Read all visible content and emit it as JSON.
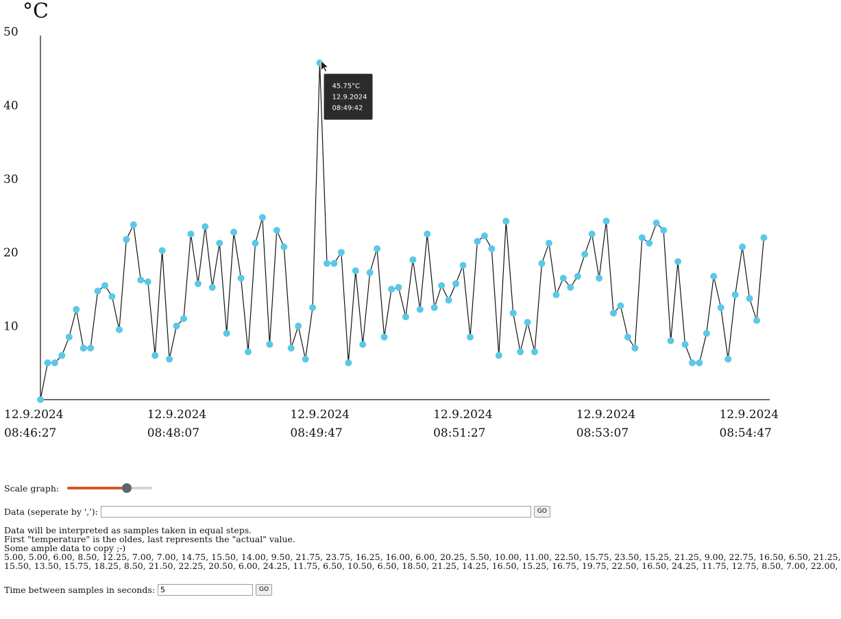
{
  "chart_data": {
    "type": "line",
    "unit_label": "°C",
    "ylim": [
      0,
      50
    ],
    "yticks": [
      10,
      20,
      30,
      40,
      50
    ],
    "x_tick_labels": [
      {
        "date": "12.9.2024",
        "time": "08:46:27"
      },
      {
        "date": "12.9.2024",
        "time": "08:48:07"
      },
      {
        "date": "12.9.2024",
        "time": "08:49:47"
      },
      {
        "date": "12.9.2024",
        "time": "08:51:27"
      },
      {
        "date": "12.9.2024",
        "time": "08:53:07"
      },
      {
        "date": "12.9.2024",
        "time": "08:54:47"
      }
    ],
    "series": [
      {
        "line_color": "#111111",
        "marker_color": "#5bc8e8",
        "values": [
          0,
          5.0,
          5.0,
          6.0,
          8.5,
          12.25,
          7.0,
          7.0,
          14.75,
          15.5,
          14.0,
          9.5,
          21.75,
          23.75,
          16.25,
          16.0,
          6.0,
          20.25,
          5.5,
          10.0,
          11.0,
          22.5,
          15.75,
          23.5,
          15.25,
          21.25,
          9.0,
          22.75,
          16.5,
          6.5,
          21.25,
          24.75,
          7.5,
          23.0,
          20.75,
          7.0,
          10.0,
          5.5,
          12.5,
          45.75,
          18.5,
          18.5,
          20.0,
          5.0,
          17.5,
          7.5,
          17.25,
          20.5,
          8.5,
          15.0,
          15.25,
          11.25,
          19.0,
          12.25,
          22.5,
          12.5,
          15.5,
          13.5,
          15.75,
          18.25,
          8.5,
          21.5,
          22.25,
          20.5,
          6.0,
          24.25,
          11.75,
          6.5,
          10.5,
          6.5,
          18.5,
          21.25,
          14.25,
          16.5,
          15.25,
          16.75,
          19.75,
          22.5,
          16.5,
          24.25,
          11.75,
          12.75,
          8.5,
          7.0,
          22.0,
          21.25,
          24.0,
          23.0,
          8.0,
          18.75,
          7.5,
          5.0,
          5.0,
          9.0,
          16.75,
          12.5,
          5.5,
          14.25,
          20.75,
          13.75,
          10.75,
          22.0
        ]
      }
    ],
    "tooltip": {
      "index": 39,
      "lines": [
        "45.75°C",
        "12.9.2024",
        "08:49:42"
      ]
    }
  },
  "controls": {
    "scale_label": "Scale graph:",
    "scale_value": 0.7,
    "data_label": "Data (seperate by ','):",
    "data_value": "",
    "go_label": "GO",
    "info_lines": [
      "Data will be interpreted as samples taken in equal steps.",
      "First \"temperature\" is the oldes, last represents the \"actual\" value.",
      "Some ample data to copy ;-)",
      "5.00, 5.00, 6.00, 8.50, 12.25, 7.00, 7.00, 14.75, 15.50, 14.00, 9.50, 21.75, 23.75, 16.25, 16.00, 6.00, 20.25, 5.50, 10.00, 11.00, 22.50, 15.75, 23.50, 15.25, 21.25, 9.00, 22.75, 16.50, 6.50, 21.25,",
      "15.50, 13.50, 15.75, 18.25, 8.50, 21.50, 22.25, 20.50, 6.00, 24.25, 11.75, 6.50, 10.50, 6.50, 18.50, 21.25, 14.25, 16.50, 15.25, 16.75, 19.75, 22.50, 16.50, 24.25, 11.75, 12.75, 8.50, 7.00, 22.00,"
    ],
    "time_label": "Time between samples in seconds:",
    "time_value": "5"
  }
}
